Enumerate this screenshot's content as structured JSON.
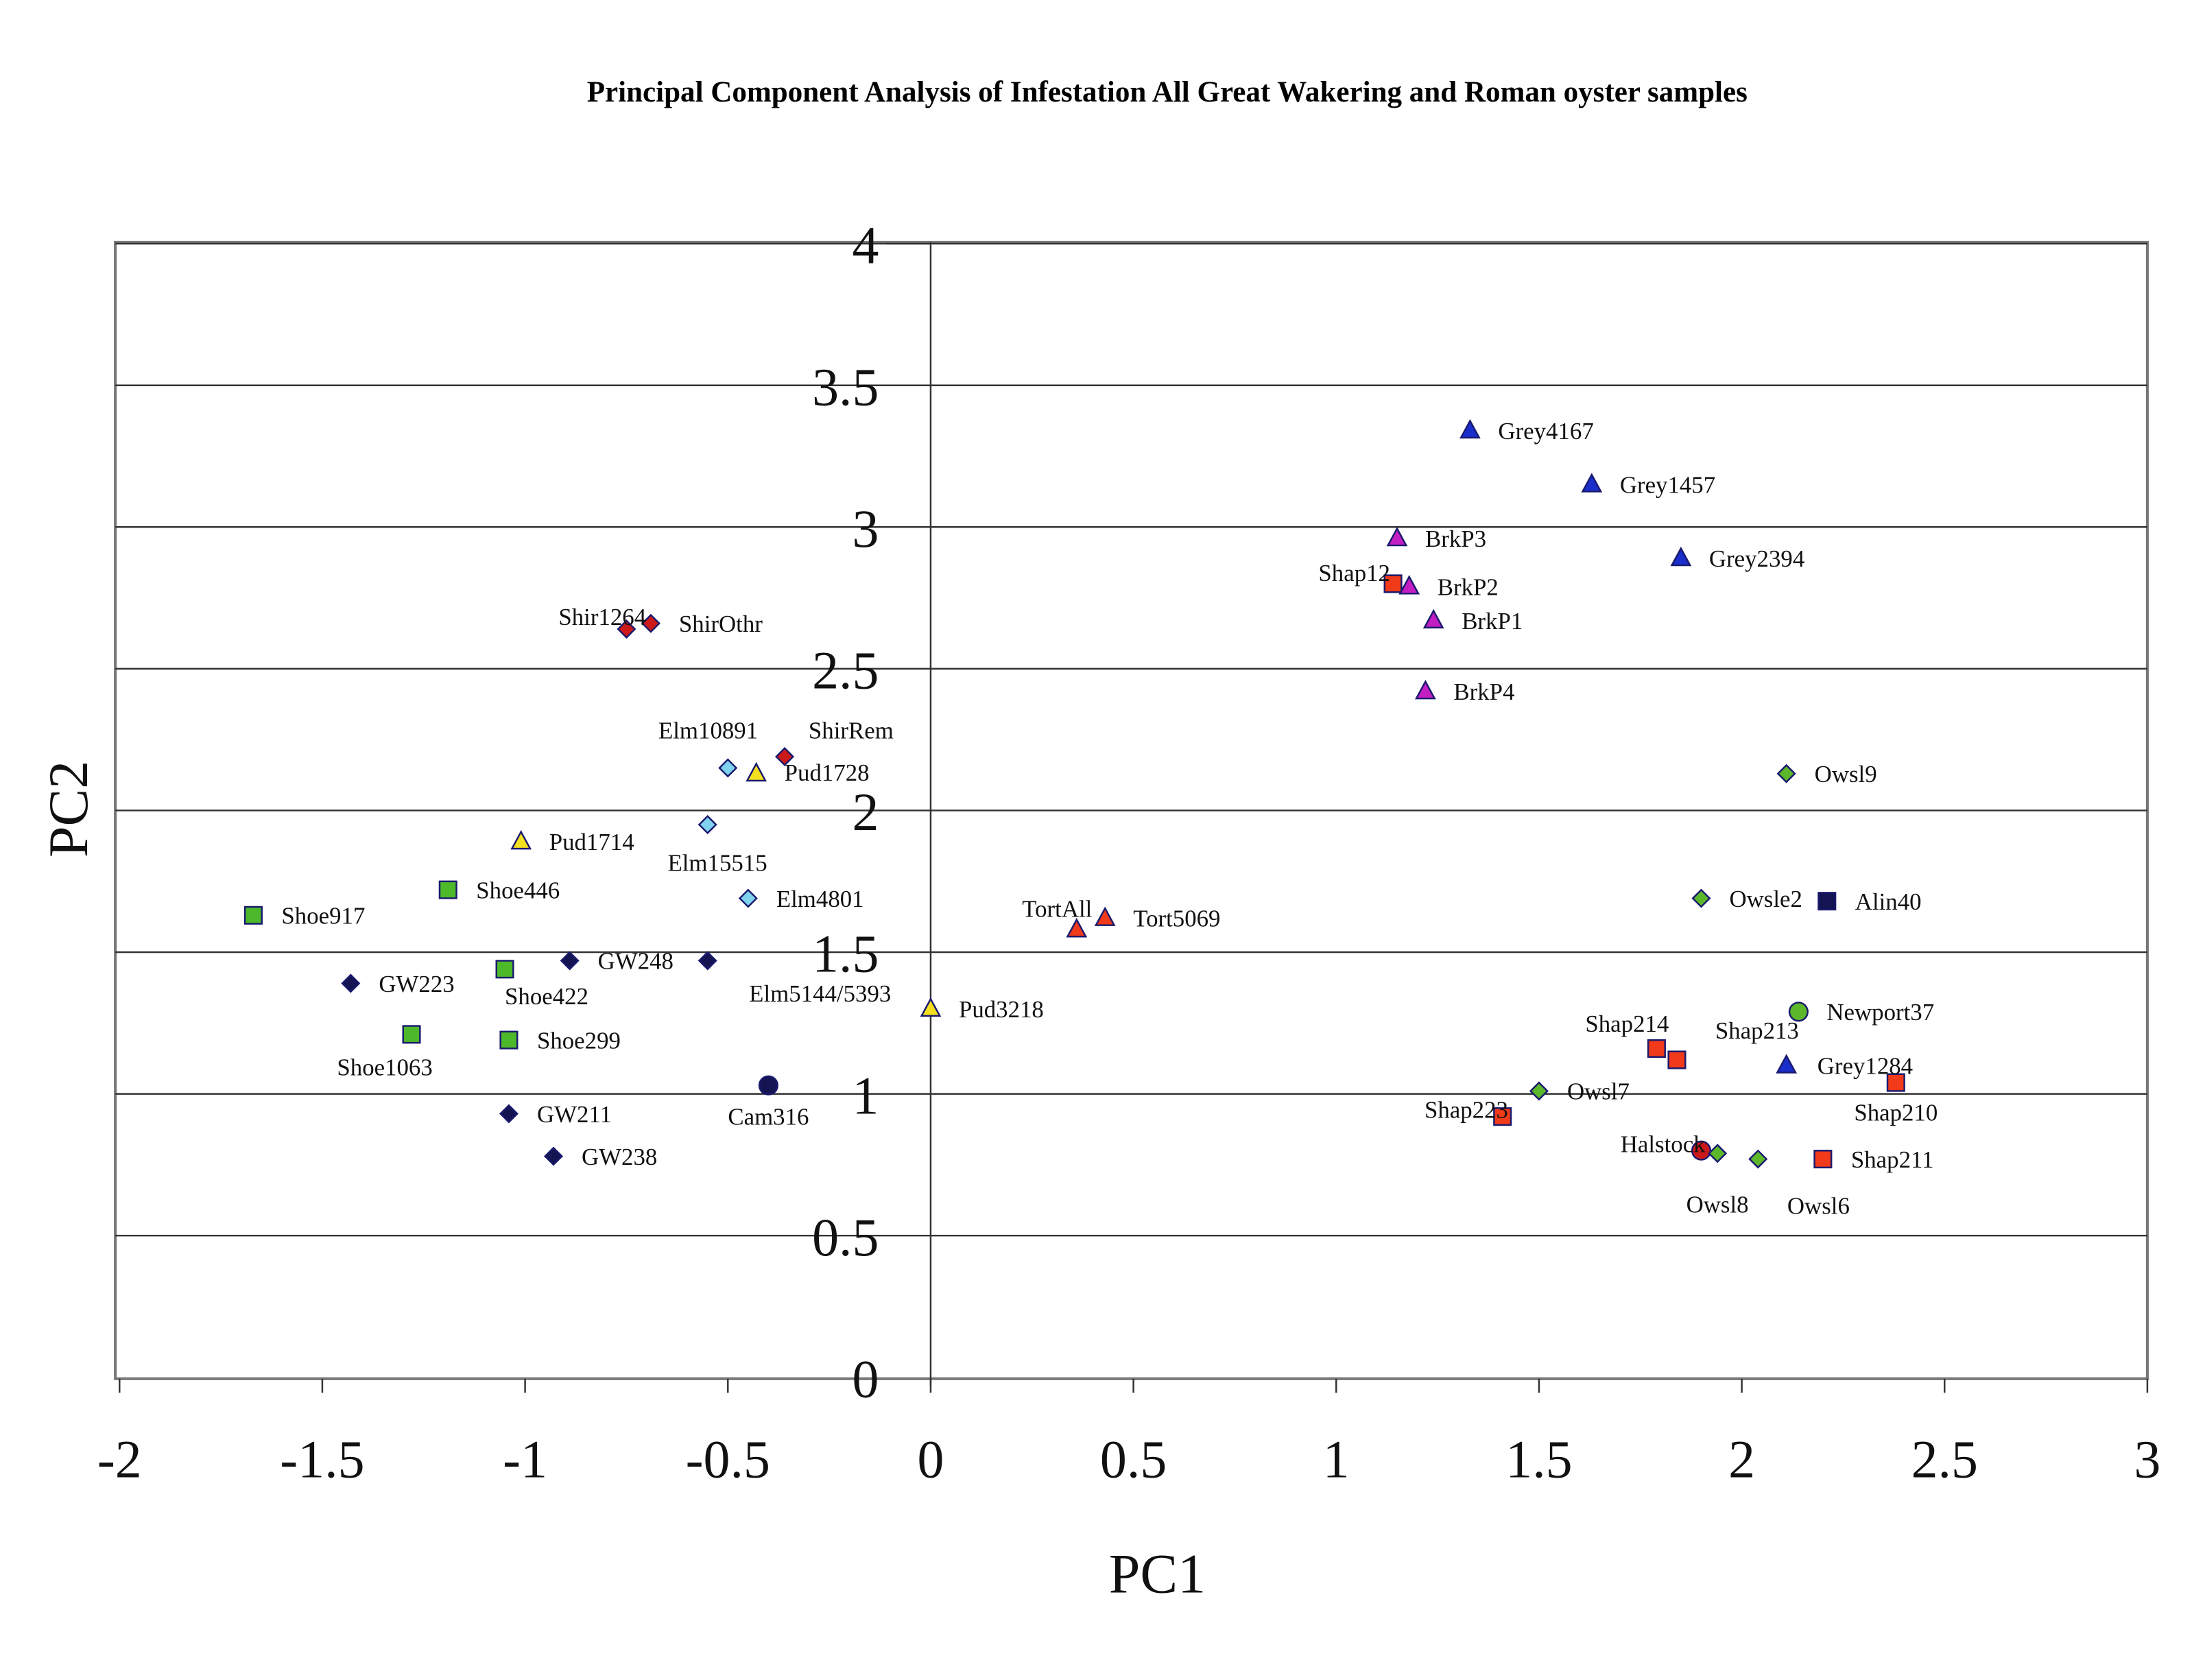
{
  "chart_data": {
    "type": "scatter",
    "title": "Principal Component Analysis of Infestation All Great Wakering and Roman oyster samples",
    "xlabel": "PC1",
    "ylabel": "PC2",
    "xlim": [
      -2,
      3
    ],
    "ylim": [
      0,
      4
    ],
    "xticks": [
      "-2",
      "-1.5",
      "-1",
      "-0.5",
      "0",
      "0.5",
      "1",
      "1.5",
      "2",
      "2.5",
      "3"
    ],
    "yticks": [
      "0",
      "0.5",
      "1",
      "1.5",
      "2",
      "2.5",
      "3",
      "3.5",
      "4"
    ],
    "grid": "horizontal",
    "points": [
      {
        "name": "Shir1264",
        "x": -0.75,
        "y": 2.64,
        "marker": "diamond",
        "color": "#cc1a1a"
      },
      {
        "name": "ShirOthr",
        "x": -0.69,
        "y": 2.66,
        "marker": "diamond",
        "color": "#cc1a1a"
      },
      {
        "name": "ShirRem",
        "x": -0.36,
        "y": 2.19,
        "marker": "diamond",
        "color": "#cc1a1a"
      },
      {
        "name": "Elm10891",
        "x": -0.5,
        "y": 2.15,
        "marker": "diamond",
        "color": "#7fd3ee"
      },
      {
        "name": "Pud1728",
        "x": -0.43,
        "y": 2.13,
        "marker": "triangle",
        "color": "#f5e020"
      },
      {
        "name": "Elm15515",
        "x": -0.55,
        "y": 1.95,
        "marker": "diamond",
        "color": "#7fd3ee"
      },
      {
        "name": "Pud1714",
        "x": -1.01,
        "y": 1.89,
        "marker": "triangle",
        "color": "#f5e020"
      },
      {
        "name": "Elm4801",
        "x": -0.45,
        "y": 1.69,
        "marker": "diamond",
        "color": "#7fd3ee"
      },
      {
        "name": "Shoe446",
        "x": -1.19,
        "y": 1.72,
        "marker": "square",
        "color": "#4cb82a"
      },
      {
        "name": "Shoe917",
        "x": -1.67,
        "y": 1.63,
        "marker": "square",
        "color": "#4cb82a"
      },
      {
        "name": "GW248",
        "x": -0.89,
        "y": 1.47,
        "marker": "diamond",
        "color": "#141452"
      },
      {
        "name": "Elm5144/5393",
        "x": -0.55,
        "y": 1.47,
        "marker": "diamond",
        "color": "#141452"
      },
      {
        "name": "GW223",
        "x": -1.43,
        "y": 1.39,
        "marker": "diamond",
        "color": "#141452"
      },
      {
        "name": "Shoe422",
        "x": -1.05,
        "y": 1.44,
        "marker": "square",
        "color": "#4cb82a"
      },
      {
        "name": "Shoe1063",
        "x": -1.28,
        "y": 1.21,
        "marker": "square",
        "color": "#4cb82a"
      },
      {
        "name": "Shoe299",
        "x": -1.04,
        "y": 1.19,
        "marker": "square",
        "color": "#4cb82a"
      },
      {
        "name": "Cam316",
        "x": -0.4,
        "y": 1.03,
        "marker": "circle",
        "color": "#141452"
      },
      {
        "name": "GW211",
        "x": -1.04,
        "y": 0.93,
        "marker": "diamond",
        "color": "#141452"
      },
      {
        "name": "GW238",
        "x": -0.93,
        "y": 0.78,
        "marker": "diamond",
        "color": "#141452"
      },
      {
        "name": "Pud3218",
        "x": 0.0,
        "y": 1.3,
        "marker": "triangle",
        "color": "#f5e020"
      },
      {
        "name": "TortAll",
        "x": 0.36,
        "y": 1.58,
        "marker": "triangle",
        "color": "#f03a1a"
      },
      {
        "name": "Tort5069",
        "x": 0.43,
        "y": 1.62,
        "marker": "triangle",
        "color": "#f03a1a"
      },
      {
        "name": "Grey4167",
        "x": 1.33,
        "y": 3.34,
        "marker": "triangle",
        "color": "#1a2ecc"
      },
      {
        "name": "Grey1457",
        "x": 1.63,
        "y": 3.15,
        "marker": "triangle",
        "color": "#1a2ecc"
      },
      {
        "name": "Grey2394",
        "x": 1.85,
        "y": 2.89,
        "marker": "triangle",
        "color": "#1a2ecc"
      },
      {
        "name": "BrkP3",
        "x": 1.15,
        "y": 2.96,
        "marker": "triangle",
        "color": "#c21ec2"
      },
      {
        "name": "Shap12",
        "x": 1.14,
        "y": 2.8,
        "marker": "square",
        "color": "#f03a1a"
      },
      {
        "name": "BrkP2",
        "x": 1.18,
        "y": 2.79,
        "marker": "triangle",
        "color": "#c21ec2"
      },
      {
        "name": "BrkP1",
        "x": 1.24,
        "y": 2.67,
        "marker": "triangle",
        "color": "#c21ec2"
      },
      {
        "name": "BrkP4",
        "x": 1.22,
        "y": 2.42,
        "marker": "triangle",
        "color": "#c21ec2"
      },
      {
        "name": "Owsl9",
        "x": 2.11,
        "y": 2.13,
        "marker": "diamond",
        "color": "#5cb82a"
      },
      {
        "name": "Owsle2",
        "x": 1.9,
        "y": 1.69,
        "marker": "diamond",
        "color": "#5cb82a"
      },
      {
        "name": "Alin40",
        "x": 2.21,
        "y": 1.68,
        "marker": "square",
        "color": "#141452"
      },
      {
        "name": "Newport37",
        "x": 2.14,
        "y": 1.29,
        "marker": "circle",
        "color": "#5cb82a"
      },
      {
        "name": "Shap214",
        "x": 1.79,
        "y": 1.16,
        "marker": "square",
        "color": "#f03a1a"
      },
      {
        "name": "Shap213",
        "x": 1.84,
        "y": 1.12,
        "marker": "square",
        "color": "#f03a1a"
      },
      {
        "name": "Grey1284",
        "x": 2.11,
        "y": 1.1,
        "marker": "triangle",
        "color": "#1a2ecc"
      },
      {
        "name": "Shap210",
        "x": 2.38,
        "y": 1.04,
        "marker": "square",
        "color": "#f03a1a"
      },
      {
        "name": "Owsl7",
        "x": 1.5,
        "y": 1.01,
        "marker": "diamond",
        "color": "#5cb82a"
      },
      {
        "name": "Shap223",
        "x": 1.41,
        "y": 0.92,
        "marker": "square",
        "color": "#f03a1a"
      },
      {
        "name": "Halstock",
        "x": 1.9,
        "y": 0.8,
        "marker": "circle",
        "color": "#cc1a1a"
      },
      {
        "name": "Owsl8",
        "x": 1.94,
        "y": 0.79,
        "marker": "diamond",
        "color": "#5cb82a"
      },
      {
        "name": "Owsl6",
        "x": 2.04,
        "y": 0.77,
        "marker": "diamond",
        "color": "#5cb82a"
      },
      {
        "name": "Shap211",
        "x": 2.2,
        "y": 0.77,
        "marker": "square",
        "color": "#f03a1a"
      }
    ]
  }
}
